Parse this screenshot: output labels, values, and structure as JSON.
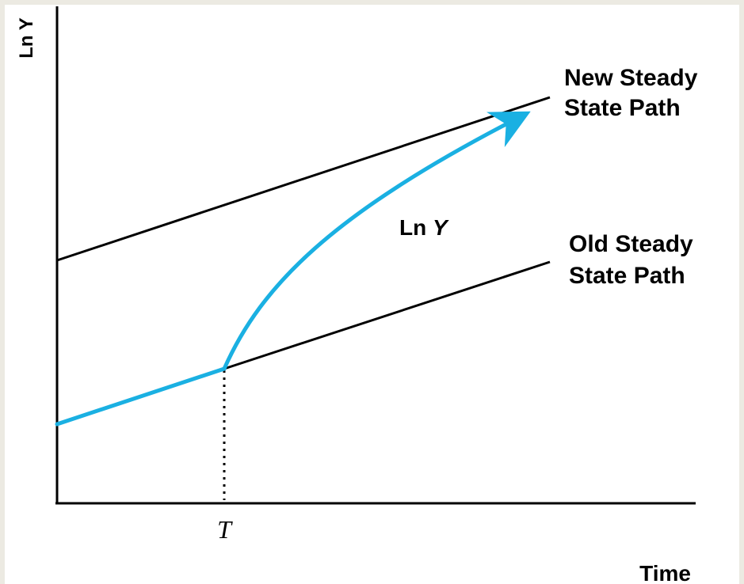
{
  "diagram": {
    "y_axis_label": "Ln Y",
    "x_axis_label": "Time",
    "time_marker_label": "T",
    "new_path_label_line1": "New Steady",
    "new_path_label_line2": "State Path",
    "old_path_label_line1": "Old Steady",
    "old_path_label_line2": "State Path",
    "curve_label_prefix": "Ln ",
    "curve_label_var": "Y",
    "colors": {
      "transition_curve": "#1ab0e2",
      "lines": "#000000",
      "background": "#ffffff",
      "frame": "#eceae2"
    }
  }
}
